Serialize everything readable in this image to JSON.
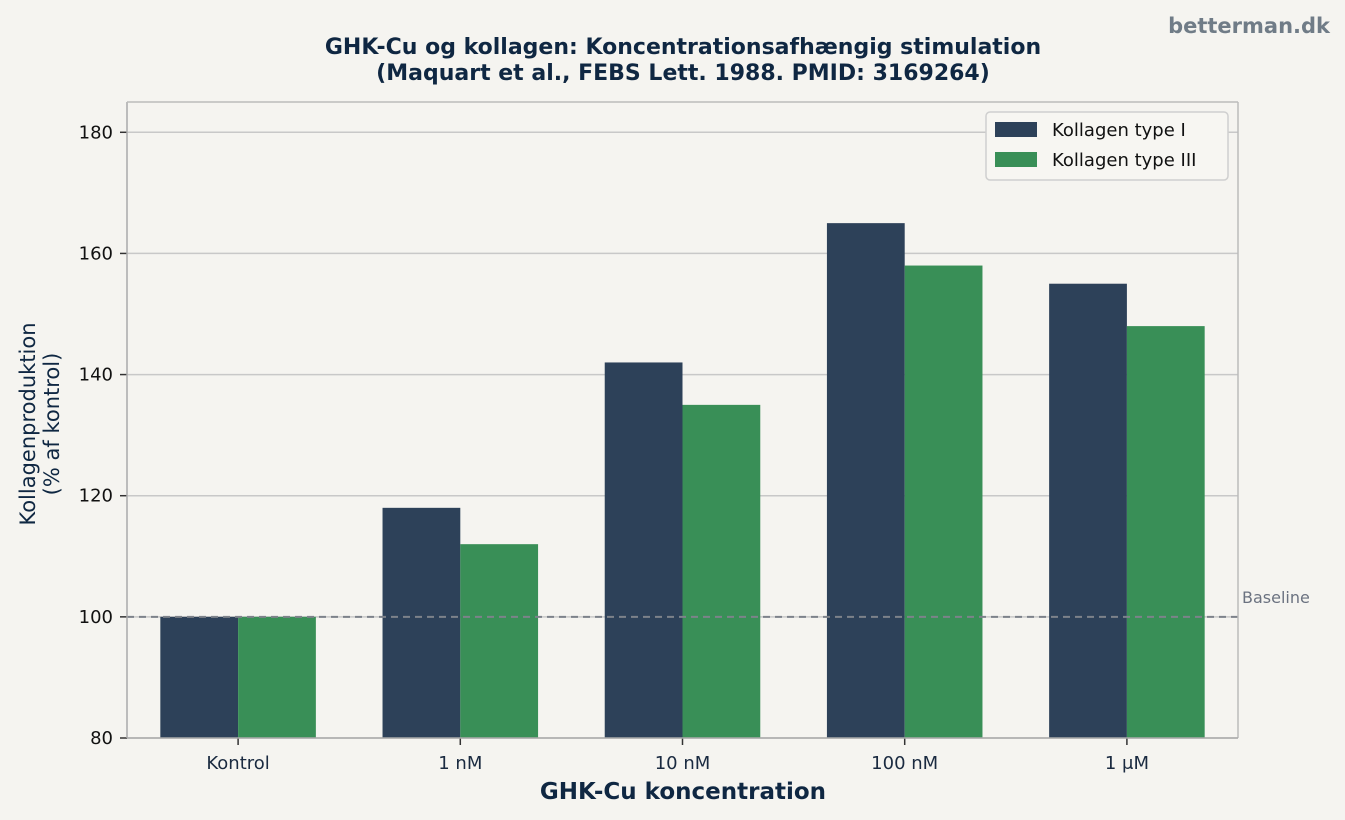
{
  "watermark": "betterman.dk",
  "colors": {
    "background": "#f5f4f0",
    "type1": "#2d4159",
    "type3": "#398f57",
    "grid": "#c8c8c8",
    "baseline": "#7d828a"
  },
  "chart_data": {
    "type": "bar",
    "title_line1": "GHK-Cu og kollagen: Koncentrationsafhængig stimulation",
    "title_line2": "(Maquart et al., FEBS Lett. 1988. PMID: 3169264)",
    "xlabel": "GHK-Cu koncentration",
    "ylabel_line1": "Kollagenproduktion",
    "ylabel_line2": "(% af kontrol)",
    "categories": [
      "Kontrol",
      "1 nM",
      "10 nM",
      "100 nM",
      "1 μM"
    ],
    "series": [
      {
        "name": "Kollagen type I",
        "values": [
          100,
          118,
          142,
          165,
          155
        ]
      },
      {
        "name": "Kollagen type III",
        "values": [
          100,
          112,
          135,
          158,
          148
        ]
      }
    ],
    "ylim": [
      80,
      185
    ],
    "yticks": [
      80,
      100,
      120,
      140,
      160,
      180
    ],
    "grid": true,
    "legend": "top-right",
    "baseline": {
      "value": 100,
      "label": "Baseline"
    }
  }
}
